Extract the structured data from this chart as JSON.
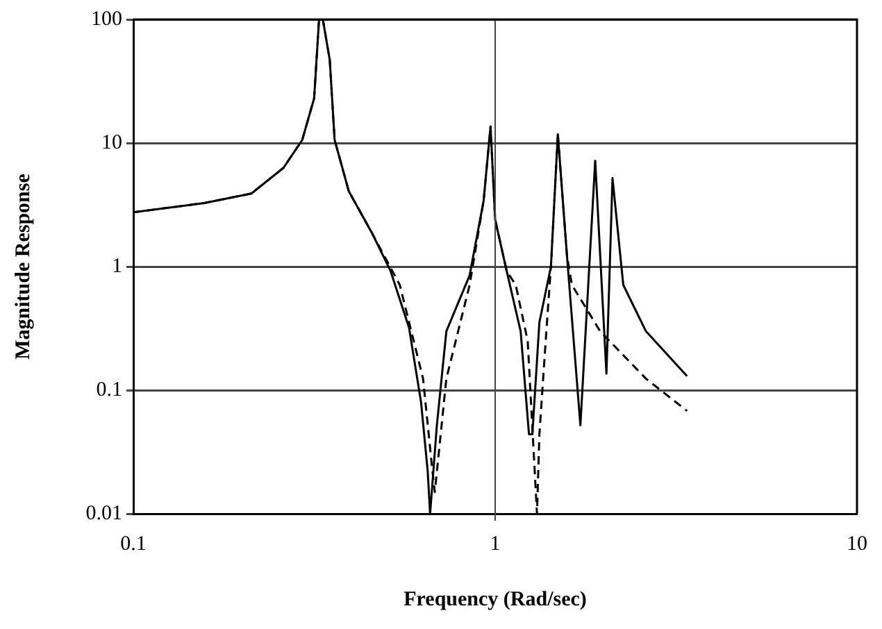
{
  "chart_data": {
    "type": "line",
    "xlabel": "Frequency (Rad/sec)",
    "ylabel": "Magnitude Response",
    "log": "xy",
    "grid": "y",
    "ref_lines": [
      {
        "axis": "x",
        "value": 1,
        "color": "#444444"
      }
    ],
    "legend": false,
    "marker": "none",
    "xlim": [
      0.1,
      10
    ],
    "xticks": [
      0.1,
      1,
      10
    ],
    "ylim": [
      0.01,
      100
    ],
    "yticks": [
      0.01,
      0.1,
      1,
      10,
      100
    ],
    "series": [
      {
        "color": "#000000",
        "line_style": "solid",
        "x": [
          0.1,
          0.157,
          0.212,
          0.26,
          0.293,
          0.316,
          0.326,
          0.334,
          0.349,
          0.36,
          0.394,
          0.457,
          0.514,
          0.578,
          0.624,
          0.651,
          0.661,
          0.69,
          0.733,
          0.85,
          0.929,
          0.971,
          1,
          1.076,
          1.176,
          1.24,
          1.267,
          1.325,
          1.426,
          1.49,
          1.58,
          1.72,
          1.89,
          2.03,
          2.11,
          2.26,
          2.61,
          3.39
        ],
        "values": [
          2.75,
          3.27,
          3.9,
          6.3,
          10.6,
          23,
          100,
          100,
          47,
          10.6,
          4.07,
          1.86,
          0.92,
          0.32,
          0.08,
          0.022,
          0.01,
          0.052,
          0.3,
          0.85,
          3.4,
          13.6,
          2.4,
          0.92,
          0.3,
          0.044,
          0.044,
          0.354,
          1,
          11.8,
          1.2,
          0.052,
          7.2,
          0.136,
          5.2,
          0.71,
          0.3,
          0.13
        ]
      },
      {
        "color": "#000000",
        "line_style": "dashed",
        "x": [
          0.1,
          0.157,
          0.212,
          0.26,
          0.293,
          0.316,
          0.326,
          0.334,
          0.349,
          0.36,
          0.394,
          0.457,
          0.545,
          0.632,
          0.671,
          0.681,
          0.733,
          0.85,
          0.929,
          0.971,
          1,
          1.076,
          1.14,
          1.23,
          1.305,
          1.325,
          1.385,
          1.426,
          1.49,
          1.58,
          1.63,
          1.95,
          2.61,
          3.39
        ],
        "values": [
          2.75,
          3.27,
          3.9,
          6.3,
          10.6,
          23,
          100,
          100,
          47,
          10.6,
          4.07,
          1.86,
          0.71,
          0.124,
          0.022,
          0.015,
          0.124,
          0.71,
          3.4,
          13.6,
          2.4,
          0.92,
          0.71,
          0.25,
          0.01,
          0.044,
          0.3,
          1,
          11.8,
          1.2,
          0.71,
          0.3,
          0.124,
          0.068
        ]
      }
    ]
  }
}
